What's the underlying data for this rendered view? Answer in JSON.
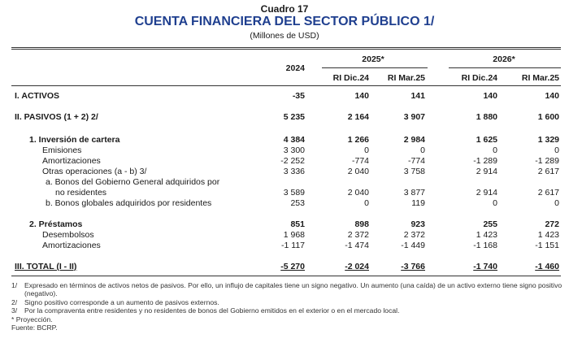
{
  "header": {
    "cuadro": "Cuadro 17",
    "title": "CUENTA FINANCIERA DEL SECTOR PÚBLICO 1/",
    "units": "(Millones de USD)"
  },
  "columns": {
    "year2024": "2024",
    "year2025": "2025*",
    "year2026": "2026*",
    "c2": "RI Dic.24",
    "c3": "RI Mar.25",
    "c4": "RI Dic.24",
    "c5": "RI Mar.25"
  },
  "rows": [
    {
      "label": "I.  ACTIVOS",
      "v": [
        "-35",
        "140",
        "141",
        "140",
        "140"
      ]
    },
    {
      "label": "II.  PASIVOS (1 + 2) 2/",
      "v": [
        "5 235",
        "2 164",
        "3 907",
        "1 880",
        "1 600"
      ]
    },
    {
      "label": "1.  Inversión de cartera",
      "v": [
        "4 384",
        "1 266",
        "2 984",
        "1 625",
        "1 329"
      ]
    },
    {
      "label": "Emisiones",
      "v": [
        "3 300",
        "0",
        "0",
        "0",
        "0"
      ]
    },
    {
      "label": "Amortizaciones",
      "v": [
        "-2 252",
        "-774",
        "-774",
        "-1 289",
        "-1 289"
      ]
    },
    {
      "label": "Otras operaciones (a - b) 3/",
      "v": [
        "3 336",
        "2 040",
        "3 758",
        "2 914",
        "2 617"
      ]
    },
    {
      "label": "a.  Bonos del Gobierno General adquiridos por",
      "v": [
        "",
        "",
        "",
        "",
        ""
      ]
    },
    {
      "label": "no residentes",
      "v": [
        "3 589",
        "2 040",
        "3 877",
        "2 914",
        "2 617"
      ]
    },
    {
      "label": "b.  Bonos globales adquiridos por residentes",
      "v": [
        "253",
        "0",
        "119",
        "0",
        "0"
      ]
    },
    {
      "label": "2.  Préstamos",
      "v": [
        "851",
        "898",
        "923",
        "255",
        "272"
      ]
    },
    {
      "label": "Desembolsos",
      "v": [
        "1 968",
        "2 372",
        "2 372",
        "1 423",
        "1 423"
      ]
    },
    {
      "label": "Amortizaciones",
      "v": [
        "-1 117",
        "-1 474",
        "-1 449",
        "-1 168",
        "-1 151"
      ]
    },
    {
      "label": "III. TOTAL (I - II)",
      "v": [
        "-5 270",
        "-2 024",
        "-3 766",
        "-1 740",
        "-1 460"
      ]
    }
  ],
  "notes": [
    {
      "mark": "1/",
      "text": "Expresado en términos de activos netos de pasivos. Por ello, un influjo de capitales tiene un signo negativo. Un aumento (una caída) de un activo externo tiene signo positivo (negativo)."
    },
    {
      "mark": "2/",
      "text": "Signo positivo corresponde a un aumento de pasivos externos."
    },
    {
      "mark": "3/",
      "text": "Por la compraventa entre residentes y no residentes de bonos del Gobierno emitidos en el exterior o en el mercado local."
    }
  ],
  "footer": {
    "projection": "* Proyección.",
    "source": "Fuente: BCRP."
  }
}
